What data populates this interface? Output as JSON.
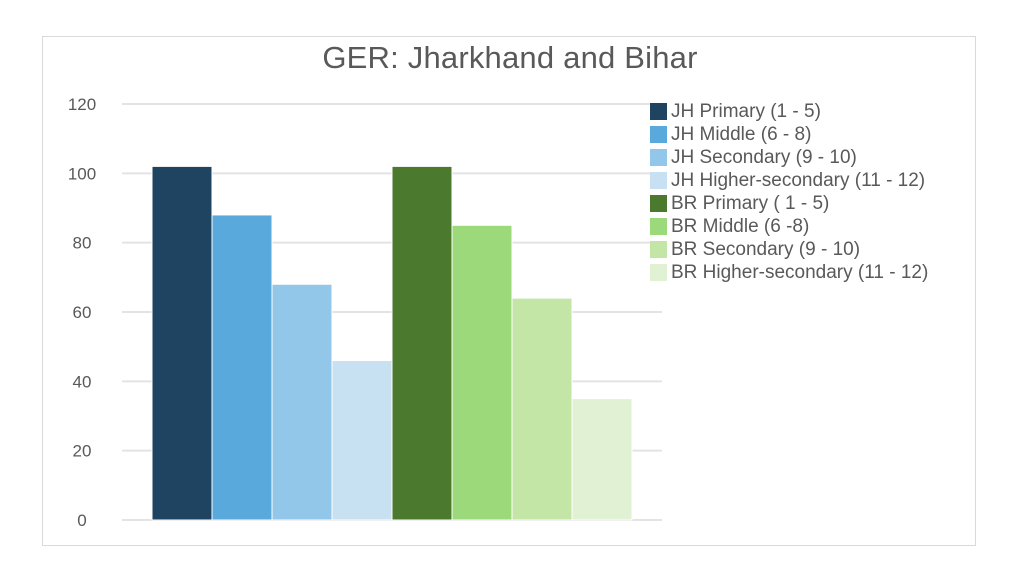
{
  "chart_data": {
    "type": "bar",
    "title": "GER: Jharkhand and Bihar",
    "xlabel": "",
    "ylabel": "",
    "ylim": [
      0,
      120
    ],
    "yticks": [
      0,
      20,
      40,
      60,
      80,
      100,
      120
    ],
    "grid": true,
    "legend_position": "right",
    "series": [
      {
        "name": "JH Primary (1 - 5)",
        "value": 102,
        "color": "#1f4462"
      },
      {
        "name": "JH Middle (6 - 8)",
        "value": 88,
        "color": "#5aa9dd"
      },
      {
        "name": "JH Secondary (9 - 10)",
        "value": 68,
        "color": "#92c7e9"
      },
      {
        "name": "JH Higher-secondary (11 - 12)",
        "value": 46,
        "color": "#c7e1f3"
      },
      {
        "name": "BR Primary ( 1 - 5)",
        "value": 102,
        "color": "#4b7a2f"
      },
      {
        "name": "BR Middle (6 -8)",
        "value": 85,
        "color": "#9cd97a"
      },
      {
        "name": "BR Secondary (9 - 10)",
        "value": 64,
        "color": "#c3e6a7"
      },
      {
        "name": "BR Higher-secondary (11 - 12)",
        "value": 35,
        "color": "#e1f1d3"
      }
    ]
  }
}
